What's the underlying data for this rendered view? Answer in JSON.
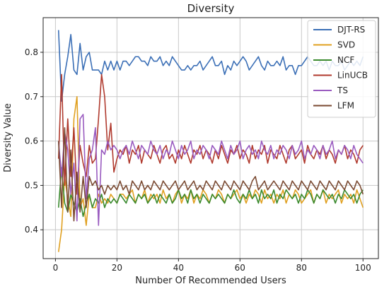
{
  "chart_data": {
    "type": "line",
    "title": "Diversity",
    "xlabel": "Number Of Recommended Users",
    "ylabel": "Diversity Value",
    "xlim": [
      -4,
      105
    ],
    "ylim": [
      0.335,
      0.878
    ],
    "xticks": [
      0,
      20,
      40,
      60,
      80,
      100
    ],
    "yticks": [
      0.4,
      0.5,
      0.6,
      0.7,
      0.8
    ],
    "ytick_labels": [
      "0.4",
      "0.5",
      "0.6",
      "0.7",
      "0.8"
    ],
    "grid": true,
    "legend_position": "top-right",
    "x": [
      1,
      2,
      3,
      4,
      5,
      6,
      7,
      8,
      9,
      10,
      11,
      12,
      13,
      14,
      15,
      16,
      17,
      18,
      19,
      20,
      21,
      22,
      23,
      24,
      25,
      26,
      27,
      28,
      29,
      30,
      31,
      32,
      33,
      34,
      35,
      36,
      37,
      38,
      39,
      40,
      41,
      42,
      43,
      44,
      45,
      46,
      47,
      48,
      49,
      50,
      51,
      52,
      53,
      54,
      55,
      56,
      57,
      58,
      59,
      60,
      61,
      62,
      63,
      64,
      65,
      66,
      67,
      68,
      69,
      70,
      71,
      72,
      73,
      74,
      75,
      76,
      77,
      78,
      79,
      80,
      81,
      82,
      83,
      84,
      85,
      86,
      87,
      88,
      89,
      90,
      91,
      92,
      93,
      94,
      95,
      96,
      97,
      98,
      99,
      100
    ],
    "series": [
      {
        "name": "DJT-RS",
        "color": "#3b6fb6",
        "values": [
          0.85,
          0.69,
          0.75,
          0.79,
          0.84,
          0.76,
          0.75,
          0.82,
          0.76,
          0.79,
          0.8,
          0.76,
          0.76,
          0.76,
          0.75,
          0.78,
          0.76,
          0.78,
          0.76,
          0.78,
          0.76,
          0.78,
          0.78,
          0.77,
          0.78,
          0.79,
          0.79,
          0.78,
          0.78,
          0.77,
          0.79,
          0.78,
          0.78,
          0.79,
          0.77,
          0.78,
          0.77,
          0.79,
          0.78,
          0.77,
          0.76,
          0.76,
          0.77,
          0.76,
          0.77,
          0.77,
          0.78,
          0.76,
          0.77,
          0.78,
          0.79,
          0.77,
          0.77,
          0.78,
          0.75,
          0.77,
          0.76,
          0.78,
          0.77,
          0.78,
          0.79,
          0.78,
          0.76,
          0.77,
          0.78,
          0.79,
          0.77,
          0.76,
          0.78,
          0.77,
          0.77,
          0.78,
          0.77,
          0.79,
          0.76,
          0.77,
          0.77,
          0.75,
          0.77,
          0.77,
          0.78,
          0.79,
          0.78,
          0.77,
          0.77,
          0.78,
          0.77,
          0.78,
          0.76,
          0.78,
          0.77,
          0.77,
          0.78,
          0.76,
          0.77,
          0.78,
          0.77,
          0.78,
          0.77,
          0.79
        ]
      },
      {
        "name": "SVD",
        "color": "#e0a020",
        "values": [
          0.35,
          0.4,
          0.52,
          0.47,
          0.43,
          0.65,
          0.7,
          0.45,
          0.47,
          0.41,
          0.48,
          0.45,
          0.45,
          0.48,
          0.46,
          0.47,
          0.46,
          0.48,
          0.47,
          0.46,
          0.48,
          0.48,
          0.47,
          0.48,
          0.49,
          0.46,
          0.48,
          0.47,
          0.49,
          0.46,
          0.48,
          0.47,
          0.48,
          0.46,
          0.49,
          0.47,
          0.48,
          0.46,
          0.48,
          0.49,
          0.46,
          0.48,
          0.47,
          0.49,
          0.46,
          0.48,
          0.47,
          0.49,
          0.48,
          0.46,
          0.48,
          0.47,
          0.49,
          0.48,
          0.46,
          0.48,
          0.47,
          0.48,
          0.49,
          0.47,
          0.48,
          0.46,
          0.48,
          0.47,
          0.49,
          0.48,
          0.46,
          0.49,
          0.47,
          0.48,
          0.46,
          0.48,
          0.47,
          0.49,
          0.46,
          0.48,
          0.47,
          0.49,
          0.48,
          0.46,
          0.47,
          0.48,
          0.49,
          0.46,
          0.48,
          0.47,
          0.49,
          0.46,
          0.48,
          0.47,
          0.48,
          0.49,
          0.46,
          0.48,
          0.47,
          0.48,
          0.46,
          0.49,
          0.47,
          0.45
        ]
      },
      {
        "name": "NCF",
        "color": "#3a8a2e",
        "values": [
          0.45,
          0.54,
          0.46,
          0.44,
          0.48,
          0.46,
          0.44,
          0.47,
          0.43,
          0.46,
          0.48,
          0.45,
          0.47,
          0.46,
          0.48,
          0.45,
          0.47,
          0.46,
          0.47,
          0.46,
          0.48,
          0.47,
          0.46,
          0.48,
          0.47,
          0.46,
          0.48,
          0.47,
          0.48,
          0.46,
          0.47,
          0.48,
          0.46,
          0.48,
          0.47,
          0.46,
          0.48,
          0.46,
          0.47,
          0.49,
          0.47,
          0.48,
          0.46,
          0.49,
          0.47,
          0.48,
          0.46,
          0.48,
          0.47,
          0.46,
          0.48,
          0.47,
          0.48,
          0.47,
          0.46,
          0.48,
          0.47,
          0.49,
          0.47,
          0.46,
          0.48,
          0.47,
          0.49,
          0.47,
          0.48,
          0.46,
          0.49,
          0.47,
          0.48,
          0.47,
          0.49,
          0.46,
          0.48,
          0.47,
          0.49,
          0.48,
          0.47,
          0.48,
          0.46,
          0.48,
          0.47,
          0.49,
          0.48,
          0.46,
          0.48,
          0.47,
          0.49,
          0.48,
          0.47,
          0.48,
          0.46,
          0.48,
          0.47,
          0.49,
          0.48,
          0.47,
          0.48,
          0.46,
          0.48,
          0.49
        ]
      },
      {
        "name": "LinUCB",
        "color": "#b03a2e",
        "values": [
          0.56,
          0.75,
          0.5,
          0.65,
          0.52,
          0.63,
          0.48,
          0.59,
          0.55,
          0.52,
          0.59,
          0.55,
          0.56,
          0.65,
          0.75,
          0.7,
          0.58,
          0.64,
          0.53,
          0.56,
          0.58,
          0.57,
          0.59,
          0.55,
          0.58,
          0.57,
          0.59,
          0.55,
          0.58,
          0.57,
          0.56,
          0.59,
          0.57,
          0.55,
          0.58,
          0.59,
          0.56,
          0.57,
          0.55,
          0.58,
          0.56,
          0.59,
          0.57,
          0.55,
          0.58,
          0.57,
          0.59,
          0.56,
          0.58,
          0.57,
          0.55,
          0.58,
          0.56,
          0.59,
          0.57,
          0.55,
          0.58,
          0.57,
          0.59,
          0.56,
          0.58,
          0.57,
          0.55,
          0.59,
          0.56,
          0.58,
          0.57,
          0.59,
          0.55,
          0.58,
          0.57,
          0.56,
          0.59,
          0.57,
          0.55,
          0.58,
          0.59,
          0.56,
          0.57,
          0.58,
          0.55,
          0.59,
          0.57,
          0.56,
          0.58,
          0.57,
          0.59,
          0.56,
          0.58,
          0.57,
          0.55,
          0.58,
          0.57,
          0.59,
          0.56,
          0.58,
          0.57,
          0.55,
          0.58,
          0.59
        ]
      },
      {
        "name": "TS",
        "color": "#9a5cc0",
        "values": [
          0.6,
          0.52,
          0.62,
          0.58,
          0.48,
          0.55,
          0.42,
          0.65,
          0.66,
          0.47,
          0.56,
          0.58,
          0.63,
          0.41,
          0.58,
          0.57,
          0.6,
          0.58,
          0.59,
          0.58,
          0.56,
          0.58,
          0.59,
          0.57,
          0.6,
          0.58,
          0.56,
          0.59,
          0.58,
          0.57,
          0.6,
          0.58,
          0.57,
          0.59,
          0.56,
          0.58,
          0.57,
          0.6,
          0.58,
          0.56,
          0.59,
          0.57,
          0.58,
          0.6,
          0.56,
          0.58,
          0.57,
          0.59,
          0.58,
          0.56,
          0.59,
          0.58,
          0.57,
          0.6,
          0.58,
          0.56,
          0.59,
          0.57,
          0.58,
          0.6,
          0.56,
          0.58,
          0.59,
          0.57,
          0.58,
          0.56,
          0.6,
          0.58,
          0.57,
          0.59,
          0.56,
          0.58,
          0.57,
          0.59,
          0.58,
          0.56,
          0.59,
          0.57,
          0.58,
          0.6,
          0.56,
          0.58,
          0.57,
          0.59,
          0.58,
          0.56,
          0.59,
          0.57,
          0.58,
          0.6,
          0.56,
          0.58,
          0.57,
          0.59,
          0.58,
          0.56,
          0.59,
          0.57,
          0.56,
          0.55
        ]
      },
      {
        "name": "LFM",
        "color": "#7a4a32",
        "values": [
          0.6,
          0.45,
          0.63,
          0.44,
          0.58,
          0.42,
          0.53,
          0.44,
          0.52,
          0.45,
          0.52,
          0.5,
          0.51,
          0.49,
          0.5,
          0.48,
          0.5,
          0.49,
          0.5,
          0.49,
          0.51,
          0.49,
          0.5,
          0.48,
          0.51,
          0.5,
          0.49,
          0.51,
          0.49,
          0.5,
          0.49,
          0.51,
          0.5,
          0.49,
          0.51,
          0.5,
          0.49,
          0.5,
          0.51,
          0.49,
          0.5,
          0.51,
          0.49,
          0.5,
          0.51,
          0.49,
          0.5,
          0.49,
          0.51,
          0.5,
          0.49,
          0.51,
          0.5,
          0.49,
          0.51,
          0.5,
          0.49,
          0.51,
          0.5,
          0.49,
          0.51,
          0.5,
          0.49,
          0.51,
          0.52,
          0.49,
          0.5,
          0.51,
          0.49,
          0.5,
          0.51,
          0.5,
          0.49,
          0.51,
          0.5,
          0.49,
          0.51,
          0.5,
          0.49,
          0.51,
          0.5,
          0.49,
          0.51,
          0.5,
          0.49,
          0.51,
          0.5,
          0.49,
          0.51,
          0.5,
          0.49,
          0.51,
          0.5,
          0.49,
          0.51,
          0.5,
          0.49,
          0.51,
          0.5,
          0.48
        ]
      }
    ]
  }
}
